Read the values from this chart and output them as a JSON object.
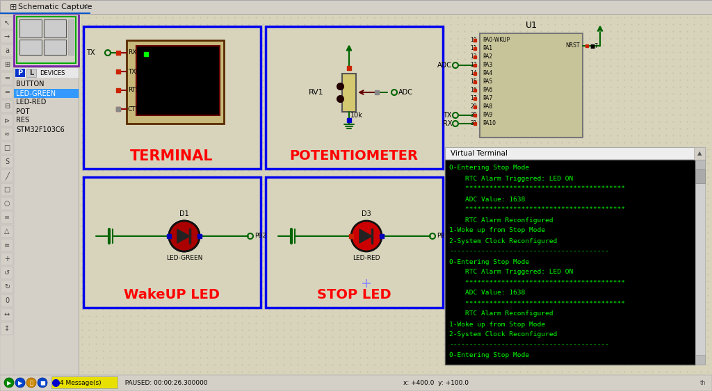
{
  "title": "Schematic Capture",
  "bg_color": "#d4d0c8",
  "schematic_bg": "#d8d4bc",
  "blue_box_color": "#0000ee",
  "red_label_color": "#ff0000",
  "green_wire": "#006400",
  "dark_red_wire": "#8B0000",
  "terminal_label": "TERMINAL",
  "potentiometer_label": "POTENTIOMETER",
  "wakeup_label": "WakeUP LED",
  "stop_label": "STOP LED",
  "terminal_lines": [
    "0-Entering Stop Mode",
    "    RTC Alarm Triggered: LED ON",
    "    ****************************************",
    "    ADC Value: 1638",
    "    ****************************************",
    "    RTC Alarm Reconfigured",
    "1-Woke up from Stop Mode",
    "2-System Clock Reconfigured",
    "----------------------------------------",
    "0-Entering Stop Mode",
    "    RTC Alarm Triggered: LED ON",
    "    ****************************************",
    "    ADC Value: 1638",
    "    ****************************************",
    "    RTC Alarm Reconfigured",
    "1-Woke up from Stop Mode",
    "2-System Clock Reconfigured",
    "----------------------------------------",
    "0-Entering Stop Mode"
  ],
  "devices": [
    "BUTTON",
    "LED-GREEN",
    "LED-RED",
    "POT",
    "RES",
    "STM32F103C6"
  ],
  "selected_device": "LED-GREEN",
  "status_text": "PAUSED: 00:00:26.300000",
  "msg_count": "4 Message(s)",
  "coords": "x: +400.0  y: +100.0",
  "u1_label": "U1",
  "stm_pins": [
    [
      10,
      "PA0-WKUP"
    ],
    [
      11,
      "PA1"
    ],
    [
      12,
      "PA2"
    ],
    [
      13,
      "PA3"
    ],
    [
      14,
      "PA4"
    ],
    [
      15,
      "PA5"
    ],
    [
      16,
      "PA6"
    ],
    [
      17,
      "PA7"
    ],
    [
      29,
      "PA8"
    ],
    [
      30,
      "PA9"
    ],
    [
      31,
      "PA10"
    ]
  ]
}
